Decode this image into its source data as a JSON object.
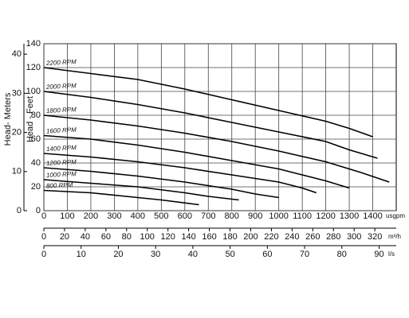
{
  "chart_data": {
    "type": "line",
    "x_label": "usgpm",
    "y_label": "Head - Feet",
    "y2_label": "Head- Meters",
    "xlim": [
      0,
      1500
    ],
    "xticks": [
      0,
      100,
      200,
      300,
      400,
      500,
      600,
      700,
      800,
      900,
      1000,
      1100,
      1200,
      1300,
      1400
    ],
    "ylim": [
      0,
      140
    ],
    "yticks": [
      0,
      20,
      40,
      60,
      80,
      100,
      120,
      140
    ],
    "y2lim": [
      0,
      42.672
    ],
    "y2ticks": [
      0,
      10,
      20,
      30,
      40
    ],
    "x2_label": "m³/h",
    "x2lim": [
      0,
      340.7
    ],
    "x2ticks": [
      0,
      20,
      40,
      60,
      80,
      100,
      120,
      140,
      160,
      180,
      200,
      220,
      240,
      260,
      280,
      300,
      320
    ],
    "x3_label": "l/s",
    "x3lim": [
      0,
      94.6
    ],
    "x3ticks": [
      0,
      10,
      20,
      30,
      40,
      50,
      60,
      70,
      80,
      90
    ],
    "grid": true,
    "series": [
      {
        "name": "2200 RPM",
        "color": "#000000",
        "x": [
          0,
          200,
          400,
          600,
          800,
          1000,
          1200,
          1300,
          1400
        ],
        "values": [
          120,
          115,
          110,
          102,
          93,
          84,
          75,
          69,
          62
        ]
      },
      {
        "name": "2000 RPM",
        "color": "#000000",
        "x": [
          0,
          200,
          400,
          600,
          800,
          1000,
          1200,
          1300,
          1420
        ],
        "values": [
          100,
          95,
          89,
          82,
          74,
          66,
          58,
          51,
          44
        ]
      },
      {
        "name": "1800 RPM",
        "color": "#000000",
        "x": [
          0,
          200,
          400,
          600,
          800,
          1000,
          1200,
          1350,
          1470
        ],
        "values": [
          80,
          76,
          71,
          65,
          58,
          50,
          41,
          32,
          24
        ]
      },
      {
        "name": "1600 RPM",
        "color": "#000000",
        "x": [
          0,
          200,
          400,
          600,
          800,
          1000,
          1100,
          1200,
          1300
        ],
        "values": [
          63,
          60,
          55,
          49,
          42,
          35,
          30,
          25,
          19
        ]
      },
      {
        "name": "1400 RPM",
        "color": "#000000",
        "x": [
          0,
          200,
          400,
          600,
          800,
          1000,
          1100,
          1160
        ],
        "values": [
          48,
          45,
          41,
          36,
          30,
          24,
          19,
          15
        ]
      },
      {
        "name": "1200 RPM",
        "color": "#000000",
        "x": [
          0,
          200,
          400,
          600,
          800,
          900,
          1000
        ],
        "values": [
          36,
          33,
          29,
          24,
          18,
          14,
          11
        ]
      },
      {
        "name": "1000 RPM",
        "color": "#000000",
        "x": [
          0,
          200,
          400,
          600,
          700,
          830
        ],
        "values": [
          26,
          23,
          20,
          15,
          12,
          9
        ]
      },
      {
        "name": "800 RPM",
        "color": "#000000",
        "x": [
          0,
          200,
          400,
          500,
          660
        ],
        "values": [
          17,
          15,
          11,
          9,
          5
        ]
      }
    ]
  }
}
